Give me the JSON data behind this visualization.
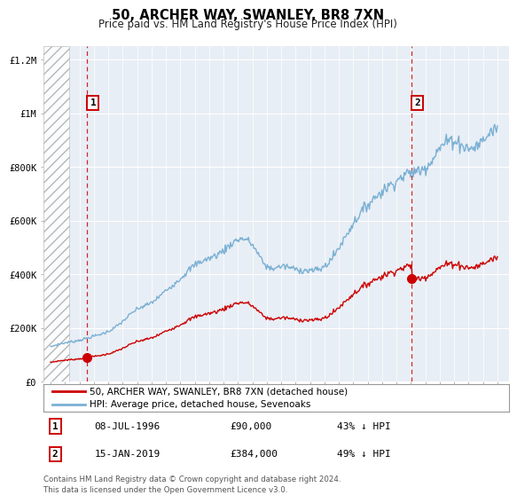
{
  "title": "50, ARCHER WAY, SWANLEY, BR8 7XN",
  "subtitle": "Price paid vs. HM Land Registry's House Price Index (HPI)",
  "legend_line1": "50, ARCHER WAY, SWANLEY, BR8 7XN (detached house)",
  "legend_line2": "HPI: Average price, detached house, Sevenoaks",
  "annotation1_label": "1",
  "annotation1_date": "08-JUL-1996",
  "annotation1_price": "£90,000",
  "annotation1_hpi": "43% ↓ HPI",
  "annotation1_year": 1996.55,
  "annotation1_value": 90000,
  "annotation2_label": "2",
  "annotation2_date": "15-JAN-2019",
  "annotation2_price": "£384,000",
  "annotation2_hpi": "49% ↓ HPI",
  "annotation2_year": 2019.04,
  "annotation2_value": 384000,
  "footer": "Contains HM Land Registry data © Crown copyright and database right 2024.\nThis data is licensed under the Open Government Licence v3.0.",
  "red_color": "#cc0000",
  "blue_color": "#7ab0d4",
  "background_color": "#ffffff",
  "plot_bg_color": "#e8eef5",
  "ylim": [
    0,
    1250000
  ],
  "xlim_start": 1993.5,
  "xlim_end": 2025.8,
  "yticks": [
    0,
    200000,
    400000,
    600000,
    800000,
    1000000,
    1200000
  ],
  "ytick_labels": [
    "£0",
    "£200K",
    "£400K",
    "£600K",
    "£800K",
    "£1M",
    "£1.2M"
  ]
}
